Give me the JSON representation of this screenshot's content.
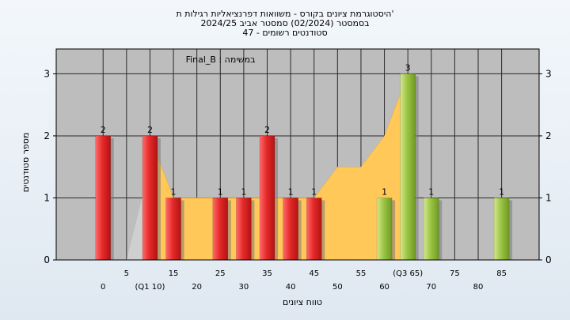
{
  "titles": [
    "'היסטוגרמת ציונים בקורס - משוואות דפרנציאליות רגילות ת",
    "בסמסטר  (02/2024)  סמסטר אביב 2024/25",
    "סטודנטים רשומים - 47"
  ],
  "chart_data": {
    "type": "bar",
    "annotation": "במשימה : Final_B",
    "xlabel": "טווח ציונים",
    "ylabel": "מספר סטודנטים",
    "ylim": [
      0,
      3.4
    ],
    "xlim": [
      -10,
      93
    ],
    "yticks": [
      0,
      1,
      2,
      3
    ],
    "xticks_upper": [
      5,
      15,
      25,
      35,
      45,
      55,
      65,
      75,
      85
    ],
    "xticks_lower": [
      0,
      10,
      20,
      30,
      40,
      50,
      60,
      70,
      80
    ],
    "xtick_labels": {
      "10": "(Q1 10)",
      "65": "(Q3 65)"
    },
    "bars": [
      {
        "x": 0,
        "value": 2,
        "label": "2",
        "color": "red"
      },
      {
        "x": 10,
        "value": 2,
        "label": "2",
        "color": "red"
      },
      {
        "x": 15,
        "value": 1,
        "label": "1",
        "color": "red"
      },
      {
        "x": 25,
        "value": 1,
        "label": "1",
        "color": "red"
      },
      {
        "x": 30,
        "value": 1,
        "label": "1",
        "color": "red"
      },
      {
        "x": 35,
        "value": 2,
        "label": "2",
        "color": "red"
      },
      {
        "x": 40,
        "value": 1,
        "label": "1",
        "color": "red"
      },
      {
        "x": 45,
        "value": 1,
        "label": "1",
        "color": "red"
      },
      {
        "x": 60,
        "value": 1,
        "label": "1",
        "color": "green"
      },
      {
        "x": 65,
        "value": 3,
        "label": "3",
        "color": "green"
      },
      {
        "x": 70,
        "value": 1,
        "label": "1",
        "color": "green"
      },
      {
        "x": 85,
        "value": 1,
        "label": "1",
        "color": "green"
      }
    ],
    "area": {
      "x": [
        10,
        15,
        20,
        25,
        30,
        35,
        40,
        45,
        50,
        55,
        60,
        65
      ],
      "values": [
        2,
        1,
        1,
        1,
        1,
        1,
        1,
        1,
        1.5,
        1.5,
        2,
        3
      ]
    },
    "colors": {
      "plot_bg": "#bdbdbd",
      "area": "#ffc859",
      "red_light": "#ff6b6b",
      "red_dark": "#c41616",
      "green_light": "#c6e07c",
      "green_dark": "#6f9a22",
      "page_bg": "#e8eef5"
    },
    "grid": true
  }
}
